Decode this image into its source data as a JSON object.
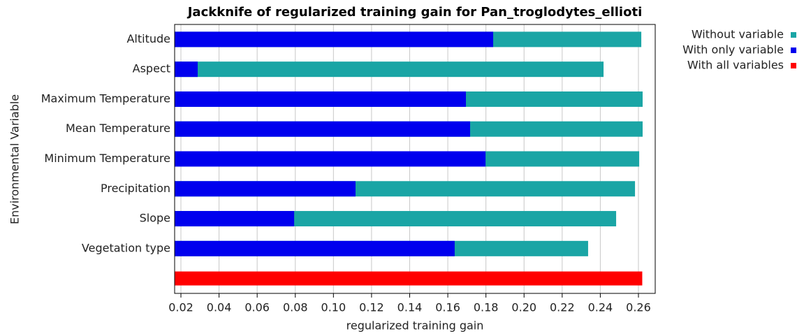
{
  "chart_data": {
    "type": "bar",
    "orientation": "horizontal",
    "title": "Jackknife of regularized training gain for Pan_troglodytes_ellioti",
    "xlabel": "regularized training gain",
    "ylabel": "Environmental Variable",
    "categories": [
      "Altitude",
      "Aspect",
      "Maximum Temperature",
      "Mean Temperature",
      "Minimum Temperature",
      "Precipitation",
      "Slope",
      "Vegetation type",
      null
    ],
    "series": [
      {
        "name": "Without variable",
        "color": "#1aa5a5",
        "values": [
          0.2615,
          0.2417,
          0.2622,
          0.2622,
          0.2604,
          0.2582,
          0.2483,
          0.2336,
          null
        ]
      },
      {
        "name": "With only variable",
        "color": "#0000ee",
        "values": [
          0.1838,
          0.0288,
          0.1695,
          0.1717,
          0.1798,
          0.1116,
          0.0794,
          0.1636,
          null
        ]
      },
      {
        "name": "With all variables",
        "color": "#ff0000",
        "values": [
          null,
          null,
          null,
          null,
          null,
          null,
          null,
          null,
          0.262
        ]
      }
    ],
    "xlim": [
      0.0167,
      0.2688
    ],
    "xticks": [
      0.02,
      0.04,
      0.06,
      0.08,
      {
        "value": 0.1,
        "label": "0.10"
      },
      0.12,
      0.14,
      0.16,
      0.18,
      {
        "value": 0.2,
        "label": "0.20"
      },
      0.22,
      0.24,
      0.26
    ],
    "grid": true,
    "legend": "right"
  }
}
